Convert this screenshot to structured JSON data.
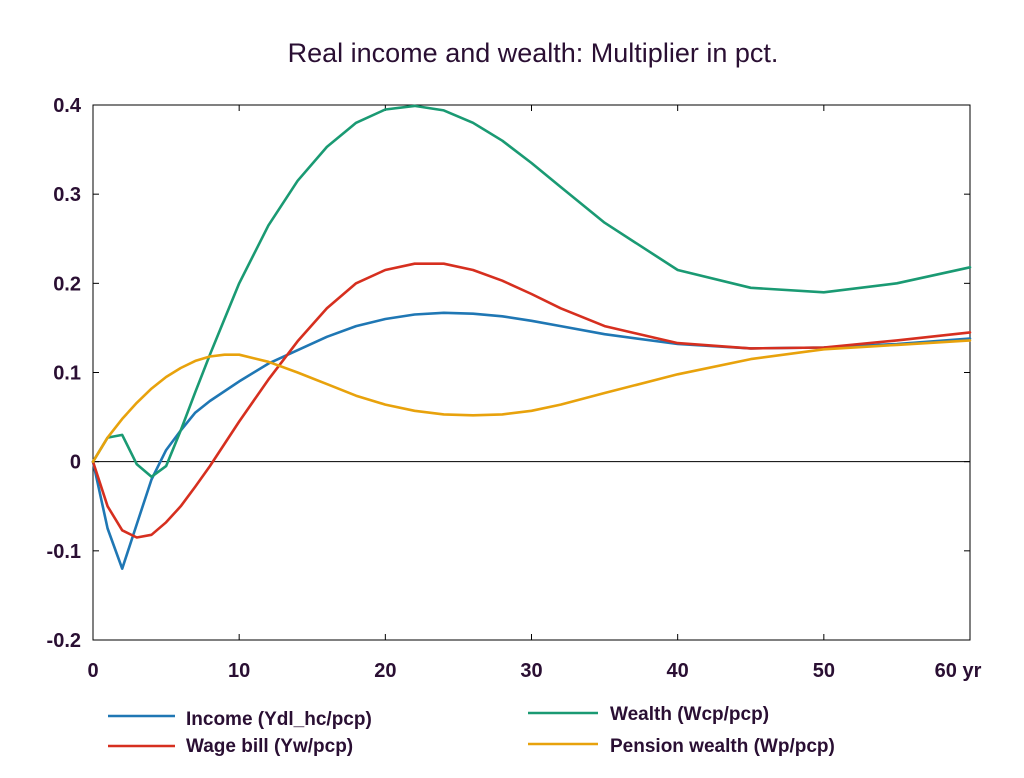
{
  "chart_data": {
    "type": "line",
    "title": "Real income and wealth: Multiplier in pct.",
    "xlabel": "",
    "ylabel": "",
    "xlim": [
      0,
      60
    ],
    "ylim": [
      -0.2,
      0.4
    ],
    "x_ticks": [
      "0",
      "10",
      "20",
      "30",
      "40",
      "50",
      "60 yr"
    ],
    "y_ticks": [
      "-0.2",
      "-0.1",
      "0",
      "0.1",
      "0.2",
      "0.3",
      "0.4"
    ],
    "grid": false,
    "legend_position": "bottom",
    "series": [
      {
        "name": "Income (Ydl_hc/pcp)",
        "color": "#1f77b4",
        "x": [
          0,
          1,
          2,
          3,
          4,
          5,
          6,
          7,
          8,
          10,
          12,
          14,
          16,
          18,
          20,
          22,
          24,
          26,
          28,
          30,
          32,
          35,
          40,
          45,
          50,
          55,
          60
        ],
        "y": [
          0,
          -0.075,
          -0.12,
          -0.07,
          -0.02,
          0.013,
          0.035,
          0.055,
          0.068,
          0.09,
          0.11,
          0.125,
          0.14,
          0.152,
          0.16,
          0.165,
          0.167,
          0.166,
          0.163,
          0.158,
          0.152,
          0.143,
          0.132,
          0.127,
          0.128,
          0.132,
          0.138
        ]
      },
      {
        "name": "Wage bill (Yw/pcp)",
        "color": "#d62f1f",
        "x": [
          0,
          1,
          2,
          3,
          4,
          5,
          6,
          7,
          8,
          10,
          12,
          14,
          16,
          18,
          20,
          22,
          24,
          26,
          28,
          30,
          32,
          35,
          40,
          45,
          50,
          55,
          60
        ],
        "y": [
          0,
          -0.05,
          -0.077,
          -0.085,
          -0.082,
          -0.068,
          -0.05,
          -0.028,
          -0.005,
          0.045,
          0.092,
          0.135,
          0.172,
          0.2,
          0.215,
          0.222,
          0.222,
          0.215,
          0.203,
          0.188,
          0.172,
          0.152,
          0.133,
          0.127,
          0.128,
          0.136,
          0.145
        ]
      },
      {
        "name": "Wealth (Wcp/pcp)",
        "color": "#1a9a73",
        "x": [
          0,
          1,
          2,
          3,
          4,
          5,
          6,
          7,
          8,
          9,
          10,
          12,
          14,
          16,
          18,
          20,
          22,
          24,
          26,
          28,
          30,
          32,
          35,
          40,
          45,
          50,
          55,
          60
        ],
        "y": [
          0,
          0.027,
          0.03,
          -0.003,
          -0.017,
          -0.005,
          0.035,
          0.078,
          0.12,
          0.16,
          0.2,
          0.265,
          0.315,
          0.353,
          0.38,
          0.395,
          0.399,
          0.394,
          0.38,
          0.36,
          0.335,
          0.308,
          0.268,
          0.215,
          0.195,
          0.19,
          0.2,
          0.218
        ]
      },
      {
        "name": "Pension wealth (Wp/pcp)",
        "color": "#e8a20c",
        "x": [
          0,
          1,
          2,
          3,
          4,
          5,
          6,
          7,
          8,
          9,
          10,
          12,
          14,
          16,
          18,
          20,
          22,
          24,
          26,
          28,
          30,
          32,
          35,
          40,
          45,
          50,
          55,
          60
        ],
        "y": [
          0,
          0.027,
          0.048,
          0.066,
          0.082,
          0.095,
          0.105,
          0.113,
          0.118,
          0.12,
          0.12,
          0.112,
          0.1,
          0.087,
          0.074,
          0.064,
          0.057,
          0.053,
          0.052,
          0.053,
          0.057,
          0.064,
          0.077,
          0.098,
          0.115,
          0.126,
          0.131,
          0.136
        ]
      }
    ]
  }
}
